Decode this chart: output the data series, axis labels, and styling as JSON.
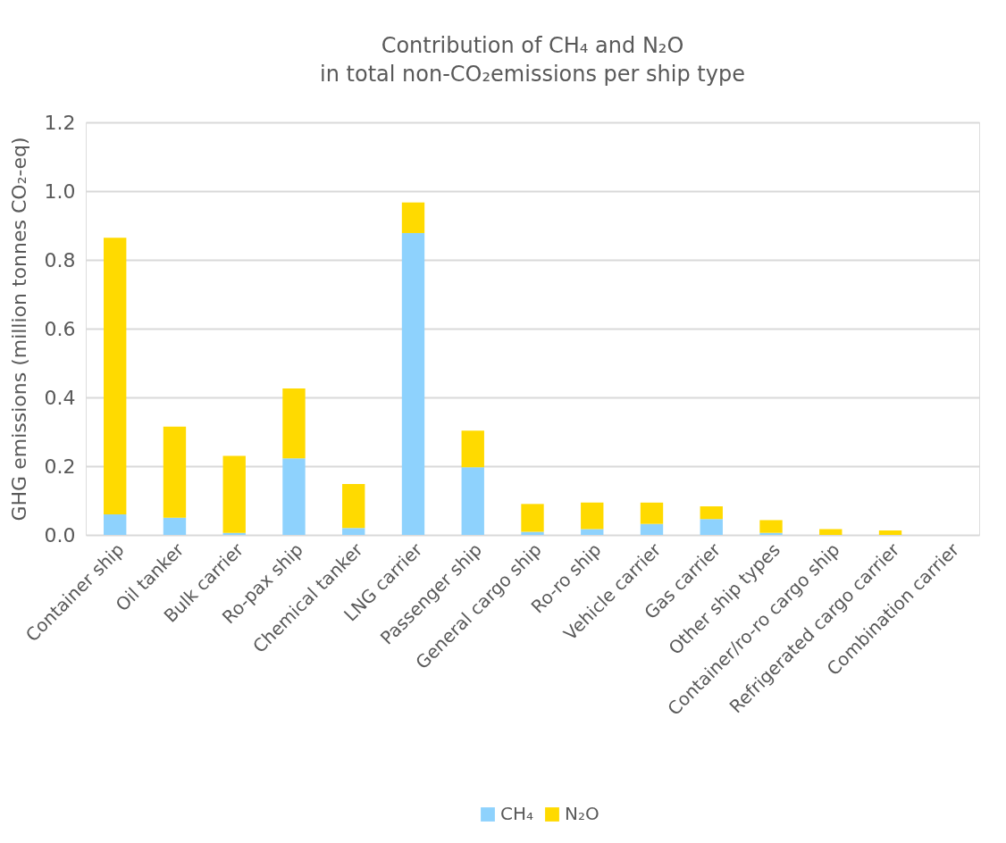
{
  "chart_data": {
    "type": "bar",
    "stacked": true,
    "title": [
      "Contribution of CH₄ and N₂O",
      "in total non-CO₂emissions per ship type"
    ],
    "ylabel": "GHG emissions (million tonnes CO₂-eq)",
    "categories": [
      "Container ship",
      "Oil tanker",
      "Bulk carrier",
      "Ro-pax ship",
      "Chemical tanker",
      "LNG carrier",
      "Passenger ship",
      "General cargo ship",
      "Ro-ro ship",
      "Vehicle carrier",
      "Gas carrier",
      "Other ship types",
      "Container/ro-ro cargo ship",
      "Refrigerated cargo carrier",
      "Combination carrier"
    ],
    "series": [
      {
        "name": "CH₄",
        "color": "#8ed2fd",
        "values": [
          0.06,
          0.05,
          0.006,
          0.223,
          0.02,
          0.878,
          0.197,
          0.009,
          0.017,
          0.032,
          0.046,
          0.006,
          0,
          0,
          0
        ]
      },
      {
        "name": "N₂O",
        "color": "#ffda00",
        "values": [
          0.804,
          0.265,
          0.224,
          0.203,
          0.128,
          0.089,
          0.106,
          0.081,
          0.077,
          0.062,
          0.037,
          0.037,
          0.017,
          0.013,
          0
        ]
      }
    ],
    "ylim": [
      0,
      1.2
    ],
    "yticks": [
      {
        "value": 0,
        "label": "0.0"
      },
      {
        "value": 0.2,
        "label": "0.2"
      },
      {
        "value": 0.4,
        "label": "0.4"
      },
      {
        "value": 0.6,
        "label": "0.6"
      },
      {
        "value": 0.8,
        "label": "0.8"
      },
      {
        "value": 1.0,
        "label": "1.0"
      },
      {
        "value": 1.2,
        "label": "1.2"
      }
    ],
    "grid": "y",
    "legend": "bottom"
  }
}
